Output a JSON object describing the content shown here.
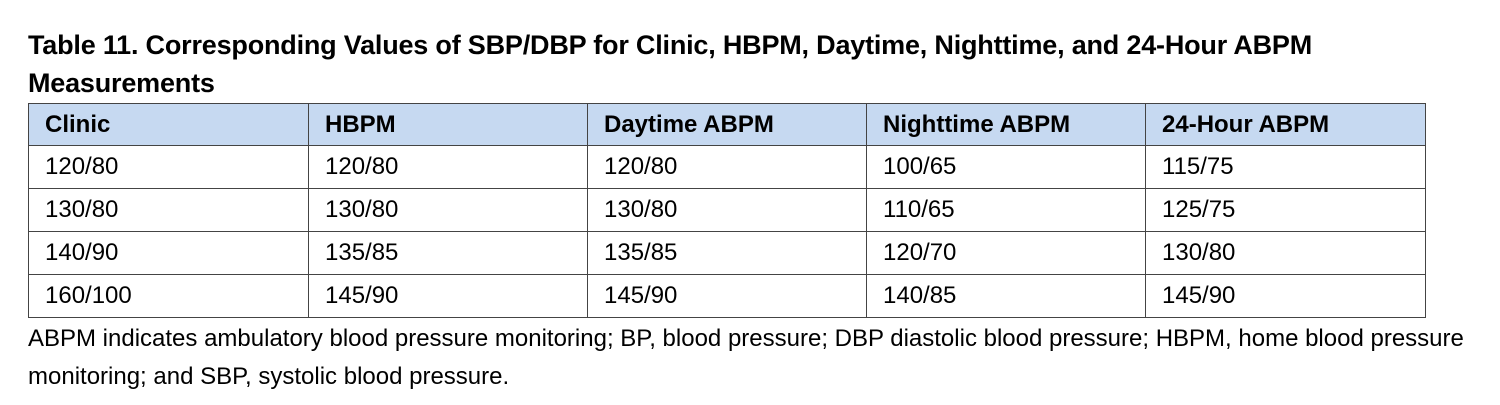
{
  "title": "Table 11. Corresponding Values of SBP/DBP for Clinic, HBPM, Daytime, Nighttime, and 24-Hour ABPM Measurements",
  "table": {
    "headers": [
      "Clinic",
      "HBPM",
      "Daytime ABPM",
      "Nighttime ABPM",
      "24-Hour ABPM"
    ],
    "rows": [
      [
        "120/80",
        "120/80",
        "120/80",
        "100/65",
        "115/75"
      ],
      [
        "130/80",
        "130/80",
        "130/80",
        "110/65",
        "125/75"
      ],
      [
        "140/90",
        "135/85",
        "135/85",
        "120/70",
        "130/80"
      ],
      [
        "160/100",
        "145/90",
        "145/90",
        "140/85",
        "145/90"
      ]
    ]
  },
  "footnote": "ABPM indicates ambulatory blood pressure monitoring; BP, blood pressure; DBP diastolic blood pressure; HBPM, home blood pressure monitoring; and SBP, systolic blood pressure.",
  "colors": {
    "header_background": "#c6d9f1",
    "border": "#444444"
  }
}
